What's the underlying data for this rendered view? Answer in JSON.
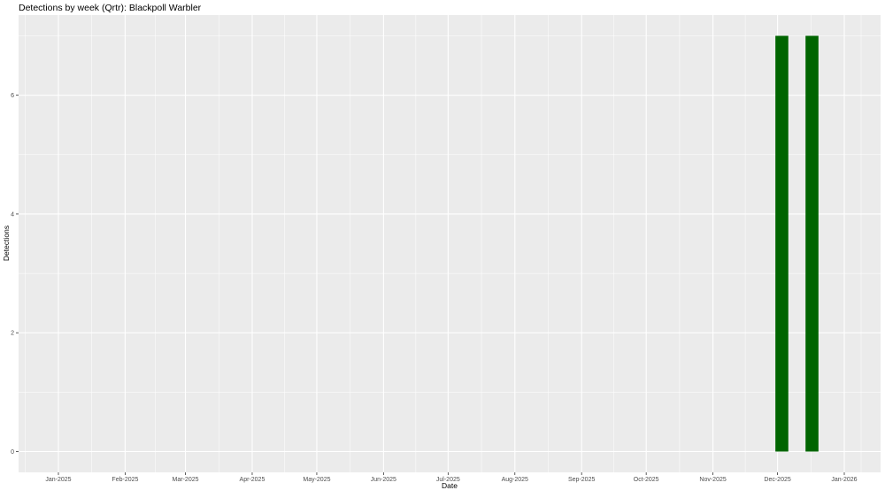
{
  "chart_data": {
    "type": "bar",
    "title": "Detections by week (Qrtr): Blackpoll Warbler",
    "xlabel": "Date",
    "ylabel": "Detections",
    "x_ticks": [
      "2025-01-01",
      "2025-02-01",
      "2025-03-01",
      "2025-04-01",
      "2025-05-01",
      "2025-06-01",
      "2025-07-01",
      "2025-08-01",
      "2025-09-01",
      "2025-10-01",
      "2025-11-01",
      "2025-12-01",
      "2026-01-01"
    ],
    "x_tick_labels": [
      "Jan-2025",
      "Feb-2025",
      "Mar-2025",
      "Apr-2025",
      "May-2025",
      "Jun-2025",
      "Jul-2025",
      "Aug-2025",
      "Sep-2025",
      "Oct-2025",
      "Nov-2025",
      "Dec-2025",
      "Jan-2026"
    ],
    "y_ticks": [
      0,
      2,
      4,
      6
    ],
    "ylim": [
      0,
      7
    ],
    "grid": true,
    "bar_color": "#006400",
    "panel_color": "#EBEBEB",
    "series": [
      {
        "x": [
          "2025-12-03",
          "2025-12-17"
        ],
        "values": [
          7,
          7
        ]
      }
    ]
  }
}
